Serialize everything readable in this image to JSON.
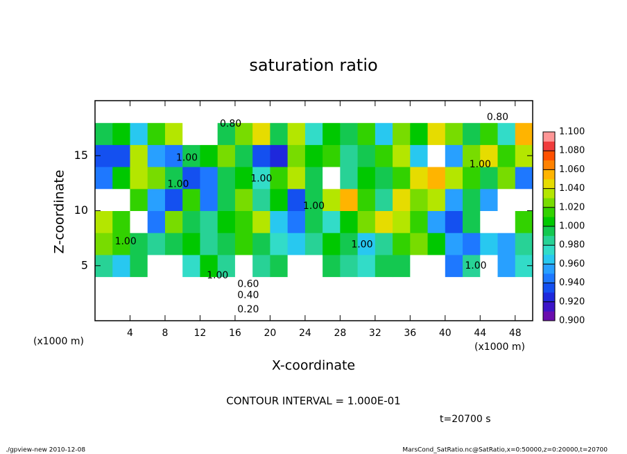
{
  "chart_data": {
    "type": "heatmap",
    "title": "saturation ratio",
    "x_label": "X-coordinate",
    "y_label": "Z-coordinate",
    "x_unit_left": "(x1000 m)",
    "x_unit_right": "(x1000 m)",
    "contour_interval": "CONTOUR INTERVAL = 1.000E-01",
    "time_label": "t=20700 s",
    "footer_left": "./gpview-new   2010-12-08",
    "footer_right": "MarsCond_SatRatio.nc@SatRatio,x=0:50000,z=0:20000,t=20700",
    "xlim": [
      0,
      50
    ],
    "ylim": [
      0,
      20
    ],
    "xticks": [
      4,
      8,
      12,
      16,
      20,
      24,
      28,
      32,
      36,
      40,
      44,
      48
    ],
    "yticks": [
      5,
      10,
      15
    ],
    "x": [
      1,
      3,
      5,
      7,
      9,
      11,
      13,
      15,
      17,
      19,
      21,
      23,
      25,
      27,
      29,
      31,
      33,
      35,
      37,
      39,
      41,
      43,
      45,
      47,
      49
    ],
    "y": [
      1,
      3,
      5,
      7,
      9,
      11,
      13,
      15,
      17,
      19
    ],
    "z": [
      [
        0.15,
        0.15,
        0.15,
        0.15,
        0.15,
        0.15,
        0.15,
        0.15,
        0.15,
        0.15,
        0.15,
        0.15,
        0.15,
        0.15,
        0.15,
        0.15,
        0.15,
        0.15,
        0.15,
        0.15,
        0.15,
        0.15,
        0.15,
        0.15,
        0.15
      ],
      [
        0.5,
        0.5,
        0.5,
        0.5,
        0.5,
        0.5,
        0.5,
        0.5,
        0.5,
        0.5,
        0.5,
        0.5,
        0.5,
        0.5,
        0.5,
        0.5,
        0.5,
        0.5,
        0.5,
        0.5,
        0.5,
        0.5,
        0.5,
        0.5,
        0.5
      ],
      [
        0.99,
        0.97,
        1.0,
        0.85,
        0.85,
        0.98,
        1.01,
        0.99,
        0.88,
        0.99,
        1.0,
        0.88,
        0.88,
        1.0,
        0.99,
        0.98,
        1.0,
        1.0,
        0.87,
        0.87,
        0.95,
        0.99,
        0.87,
        0.96,
        0.98
      ],
      [
        1.03,
        1.02,
        1.0,
        0.99,
        1.0,
        1.01,
        0.99,
        1.0,
        1.02,
        1.0,
        0.98,
        0.97,
        0.99,
        1.01,
        1.0,
        0.97,
        0.99,
        1.02,
        1.03,
        1.01,
        0.96,
        0.95,
        0.97,
        0.96,
        0.99
      ],
      [
        1.04,
        1.02,
        0.88,
        0.95,
        1.03,
        1.0,
        0.99,
        1.01,
        1.02,
        1.04,
        0.97,
        0.95,
        1.0,
        0.98,
        1.01,
        1.03,
        1.05,
        1.04,
        1.02,
        0.96,
        0.94,
        1.0,
        0.85,
        0.88,
        1.02
      ],
      [
        0.88,
        0.86,
        1.02,
        0.96,
        0.94,
        1.02,
        0.95,
        1.0,
        1.03,
        0.99,
        1.01,
        0.93,
        1.0,
        1.04,
        1.06,
        1.02,
        0.99,
        1.05,
        1.03,
        1.04,
        0.96,
        1.0,
        0.96,
        0.86,
        0.88
      ],
      [
        0.95,
        1.01,
        1.04,
        1.03,
        1.0,
        0.93,
        0.95,
        1.0,
        1.01,
        0.98,
        1.02,
        1.04,
        1.0,
        0.86,
        0.99,
        1.01,
        1.0,
        1.02,
        1.05,
        1.06,
        1.04,
        1.02,
        1.0,
        1.03,
        0.95
      ],
      [
        0.93,
        0.94,
        1.04,
        0.96,
        0.95,
        1.0,
        1.01,
        1.03,
        1.0,
        0.94,
        0.92,
        1.03,
        1.01,
        1.02,
        0.99,
        1.0,
        1.02,
        1.04,
        0.97,
        0.86,
        0.96,
        1.03,
        1.05,
        1.02,
        1.04
      ],
      [
        1.0,
        1.01,
        0.97,
        1.02,
        1.04,
        0.88,
        0.85,
        1.0,
        1.03,
        1.05,
        1.0,
        1.04,
        0.98,
        1.01,
        1.0,
        1.02,
        0.97,
        1.03,
        1.01,
        1.05,
        1.03,
        1.0,
        1.02,
        0.98,
        1.06
      ],
      [
        0.75,
        0.75,
        0.75,
        0.75,
        0.75,
        0.75,
        0.75,
        0.75,
        0.75,
        0.75,
        0.75,
        0.75,
        0.75,
        0.75,
        0.75,
        0.75,
        0.75,
        0.75,
        0.75,
        0.75,
        0.75,
        0.75,
        0.75,
        0.75,
        0.75
      ]
    ],
    "colorbar": {
      "ticks": [
        {
          "value": 0.9,
          "label": "0.900"
        },
        {
          "value": 0.92,
          "label": "0.920"
        },
        {
          "value": 0.94,
          "label": "0.940"
        },
        {
          "value": 0.96,
          "label": "0.960"
        },
        {
          "value": 0.98,
          "label": "0.980"
        },
        {
          "value": 1.0,
          "label": "1.000"
        },
        {
          "value": 1.02,
          "label": "1.020"
        },
        {
          "value": 1.04,
          "label": "1.040"
        },
        {
          "value": 1.06,
          "label": "1.060"
        },
        {
          "value": 1.08,
          "label": "1.080"
        },
        {
          "value": 1.1,
          "label": "1.100"
        }
      ],
      "colors": [
        "#6a0dad",
        "#3c14c8",
        "#1e28dc",
        "#1450f0",
        "#1e78ff",
        "#28a0ff",
        "#28c8f0",
        "#32dcc8",
        "#28d296",
        "#14c850",
        "#00c800",
        "#32d200",
        "#78dc00",
        "#b4e600",
        "#e6dc00",
        "#ffb400",
        "#ff8200",
        "#ff5000",
        "#f03c3c",
        "#ff9696"
      ],
      "below_color": "#ffffff"
    },
    "annotations": [
      {
        "text": "0.80",
        "x": 15.5,
        "y": 17.9
      },
      {
        "text": "0.80",
        "x": 46,
        "y": 18.5
      },
      {
        "text": "1.00",
        "x": 10.5,
        "y": 14.8
      },
      {
        "text": "1.00",
        "x": 9.5,
        "y": 12.4
      },
      {
        "text": "1.00",
        "x": 19,
        "y": 12.9
      },
      {
        "text": "1.00",
        "x": 25,
        "y": 10.4
      },
      {
        "text": "1.00",
        "x": 44,
        "y": 14.2
      },
      {
        "text": "1.00",
        "x": 3.5,
        "y": 7.2
      },
      {
        "text": "1.00",
        "x": 30.5,
        "y": 6.9
      },
      {
        "text": "1.00",
        "x": 14,
        "y": 4.1
      },
      {
        "text": "1.00",
        "x": 43.5,
        "y": 5
      },
      {
        "text": "0.60",
        "x": 17.5,
        "y": 3.3
      },
      {
        "text": "0.40",
        "x": 17.5,
        "y": 2.3
      },
      {
        "text": "0.20",
        "x": 17.5,
        "y": 1.0
      }
    ]
  }
}
